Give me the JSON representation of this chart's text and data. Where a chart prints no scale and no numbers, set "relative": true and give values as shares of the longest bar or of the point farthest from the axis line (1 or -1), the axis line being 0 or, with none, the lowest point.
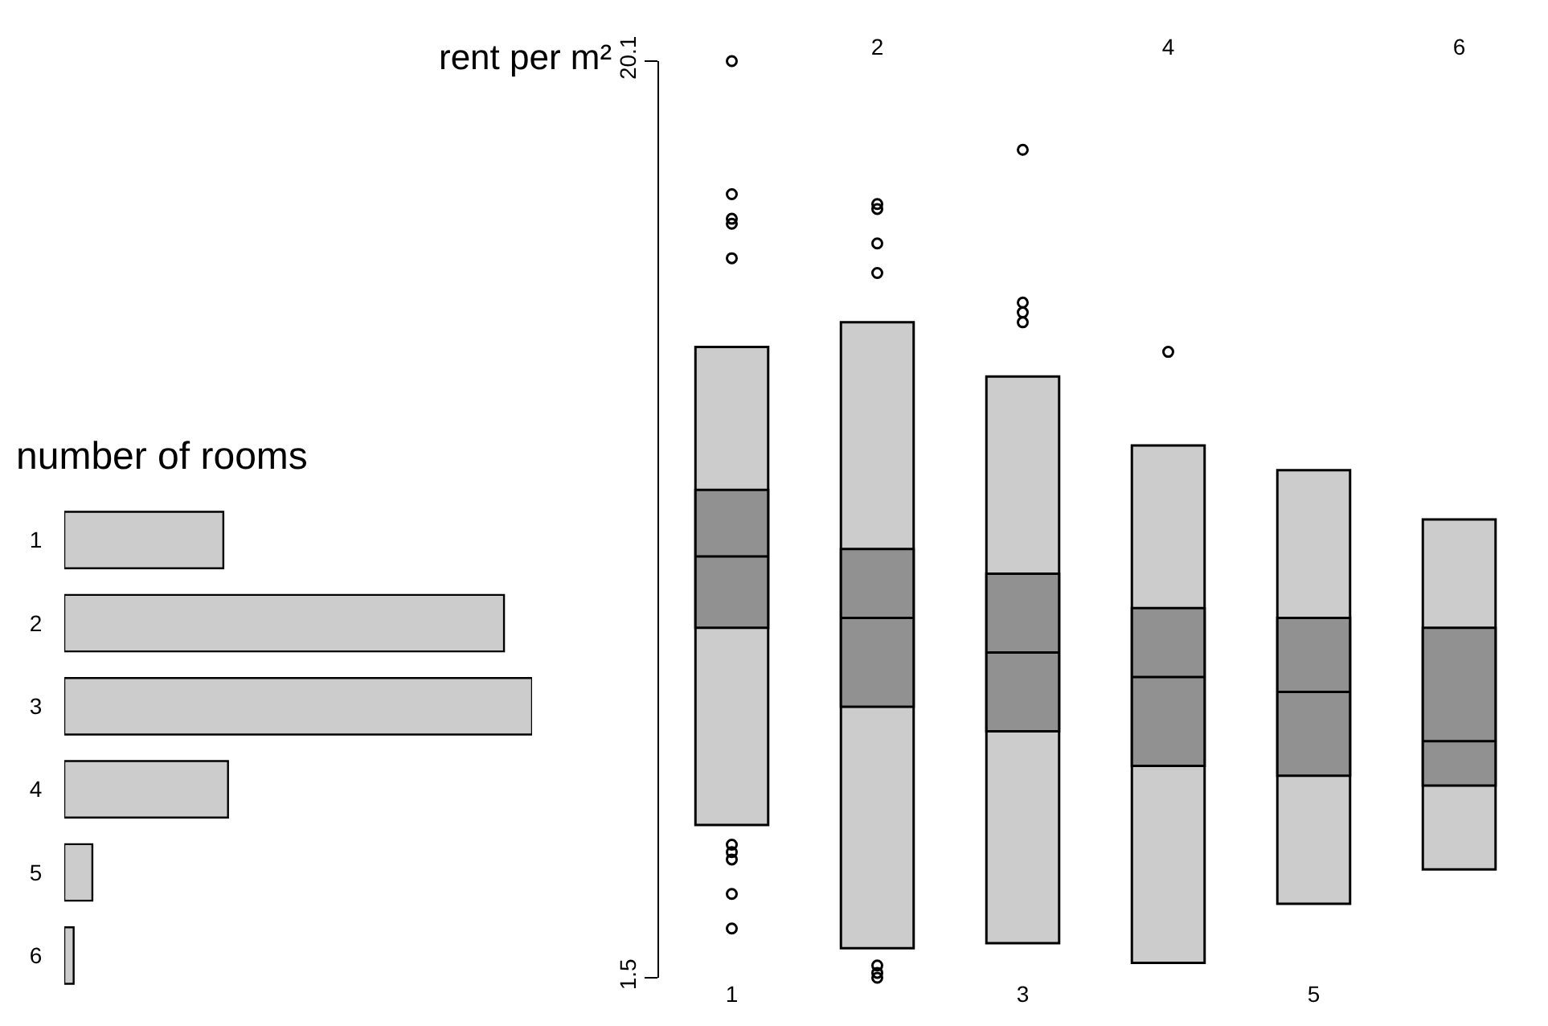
{
  "chart_data": [
    {
      "type": "bar",
      "orientation": "horizontal",
      "relative": true,
      "title": "number of rooms",
      "categories": [
        "1",
        "2",
        "3",
        "4",
        "5",
        "6"
      ],
      "values": [
        0.34,
        0.94,
        1,
        0.35,
        0.06,
        0.02
      ],
      "color": "#cccccc",
      "legend": false
    },
    {
      "type": "box",
      "ylabel": "rent per m²",
      "categories": [
        "1",
        "2",
        "3",
        "4",
        "5",
        "6"
      ],
      "ylim": [
        1.5,
        20.1
      ],
      "yticks": [
        1.5,
        20.1
      ],
      "legend": false,
      "series": [
        {
          "type": "bar",
          "color": "#cccccc",
          "base": [
            4.6,
            2.1,
            2.2,
            1.8,
            3.0,
            3.7
          ],
          "values": [
            9.7,
            12.7,
            11.5,
            10.5,
            8.8,
            7.1
          ]
        },
        {
          "color": "#919191",
          "boxes": [
            {
              "low": 8.6,
              "q1": 8.6,
              "median": 10.05,
              "q3": 11.4,
              "high": 11.4,
              "outliers": [
                20.1,
                17.4,
                16.9,
                16.8,
                16.1,
                4.2,
                4.05,
                3.9,
                3.2,
                2.5
              ]
            },
            {
              "low": 7.0,
              "q1": 7.0,
              "median": 8.8,
              "q3": 10.2,
              "high": 10.2,
              "outliers": [
                17.2,
                17.1,
                16.4,
                15.8,
                1.75,
                1.6,
                1.5
              ]
            },
            {
              "low": 6.5,
              "q1": 6.5,
              "median": 8.1,
              "q3": 9.7,
              "high": 9.7,
              "outliers": [
                18.3,
                15.2,
                15.0,
                14.8
              ]
            },
            {
              "low": 5.8,
              "q1": 5.8,
              "median": 7.6,
              "q3": 9.0,
              "high": 9.0,
              "outliers": [
                14.2
              ]
            },
            {
              "low": 5.6,
              "q1": 5.6,
              "median": 7.3,
              "q3": 8.8,
              "high": 8.8
            },
            {
              "low": 5.4,
              "q1": 5.4,
              "median": 6.3,
              "q3": 8.6,
              "high": 8.6
            }
          ]
        }
      ]
    }
  ]
}
